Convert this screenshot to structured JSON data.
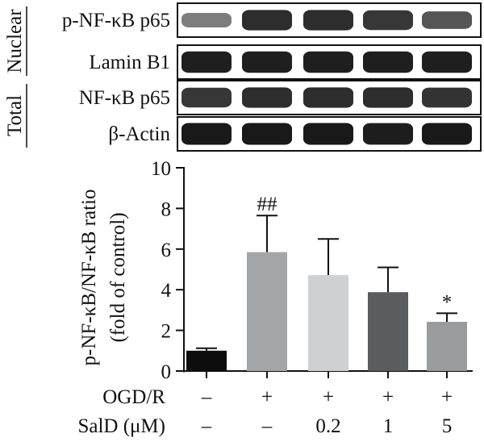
{
  "blot": {
    "group_labels": [
      {
        "text": "Nuclear",
        "rows": [
          0,
          1
        ]
      },
      {
        "text": "Total",
        "rows": [
          2,
          3
        ]
      }
    ],
    "rows": [
      {
        "label": "p-NF-κB p65",
        "intensities": [
          0.45,
          0.85,
          0.85,
          0.8,
          0.65
        ]
      },
      {
        "label": "Lamin B1",
        "intensities": [
          0.92,
          0.92,
          0.92,
          0.92,
          0.92
        ]
      },
      {
        "label": "NF-κB p65",
        "intensities": [
          0.8,
          0.85,
          0.85,
          0.85,
          0.82
        ]
      },
      {
        "label": "β-Actin",
        "intensities": [
          0.95,
          0.95,
          0.95,
          0.93,
          0.95
        ]
      }
    ]
  },
  "chart_data": {
    "type": "bar",
    "categories": [
      "Control",
      "OGD/R",
      "OGD/R + SalD 0.2",
      "OGD/R + SalD 1",
      "OGD/R + SalD 5"
    ],
    "values": [
      1.0,
      5.85,
      4.72,
      3.88,
      2.42
    ],
    "errors": [
      0.12,
      1.8,
      1.78,
      1.22,
      0.42
    ],
    "colors": [
      "#0d0d0d",
      "#a4a5a8",
      "#cfd0d2",
      "#5b5c60",
      "#9a9b9f"
    ],
    "annotations": [
      "",
      "##",
      "",
      "",
      "*"
    ],
    "ylabel": "p-NF-κB/NF-κB ratio (fold of control)",
    "ylabel_lines": [
      "p-NF-κB/NF-κB ratio",
      "(fold of control)"
    ],
    "ylim": [
      0,
      10
    ],
    "yticks": [
      0,
      2,
      4,
      6,
      8,
      10
    ],
    "treatment_table": [
      {
        "label": "OGD/R",
        "values": [
          "–",
          "+",
          "+",
          "+",
          "+"
        ]
      },
      {
        "label": "SalD (μM)",
        "values": [
          "–",
          "–",
          "0.2",
          "1",
          "5"
        ]
      }
    ]
  }
}
